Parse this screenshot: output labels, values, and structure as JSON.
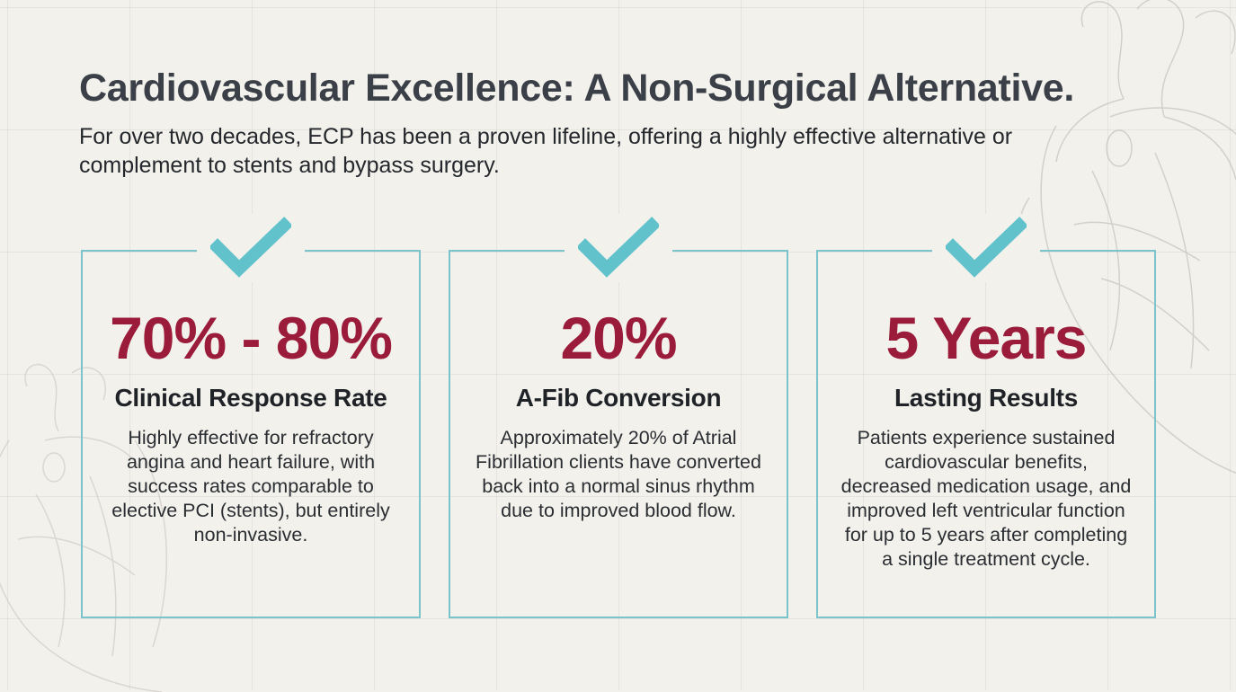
{
  "header": {
    "title": "Cardiovascular Excellence: A Non-Surgical Alternative.",
    "subtitle": "For over two decades, ECP has been a proven lifeline, offering a highly effective alternative or complement to stents and bypass surgery."
  },
  "cards": [
    {
      "icon": "checkmark-icon",
      "stat": "70% - 80%",
      "label": "Clinical Response Rate",
      "description": "Highly effective for refractory angina and heart failure, with success rates comparable to elective PCI (stents), but entirely non-invasive."
    },
    {
      "icon": "checkmark-icon",
      "stat": "20%",
      "label": "A-Fib Conversion",
      "description": "Approximately 20% of Atrial Fibrillation clients have converted back into a normal sinus rhythm due to improved blood flow."
    },
    {
      "icon": "checkmark-icon",
      "stat": "5 Years",
      "label": "Lasting Results",
      "description": "Patients experience sustained cardiovascular benefits, decreased medication usage, and improved left ventricular function for up to 5 years after completing a single treatment cycle."
    }
  ],
  "colors": {
    "accent": "#7cc4cc",
    "stat": "#9b1b3b",
    "title": "#3b4048",
    "background": "#f2f1ec"
  }
}
